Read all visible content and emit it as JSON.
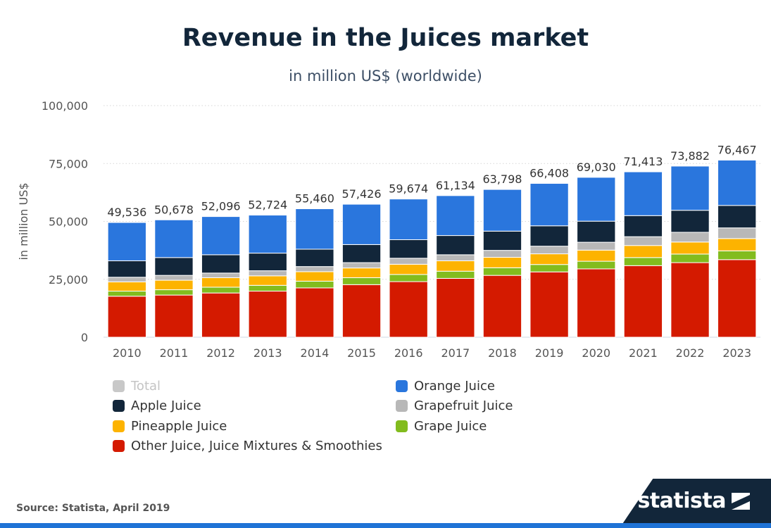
{
  "chart_data": {
    "type": "bar",
    "stacked": true,
    "title": "Revenue in the Juices market",
    "subtitle": "in million US$ (worldwide)",
    "xlabel": "",
    "ylabel": "in million US$",
    "ylim": [
      0,
      100000
    ],
    "yticks": [
      0,
      25000,
      50000,
      75000,
      100000
    ],
    "ytick_labels": [
      "0",
      "25,000",
      "50,000",
      "75,000",
      "100,000"
    ],
    "grid": true,
    "legend_position": "bottom",
    "categories": [
      "2010",
      "2011",
      "2012",
      "2013",
      "2014",
      "2015",
      "2016",
      "2017",
      "2018",
      "2019",
      "2020",
      "2021",
      "2022",
      "2023"
    ],
    "totals": [
      49536,
      50678,
      52096,
      52724,
      55460,
      57426,
      59674,
      61134,
      63798,
      66408,
      69030,
      71413,
      73882,
      76467
    ],
    "total_labels": [
      "49,536",
      "50,678",
      "52,096",
      "52,724",
      "55,460",
      "57,426",
      "59,674",
      "61,134",
      "63,798",
      "66,408",
      "69,030",
      "71,413",
      "73,882",
      "76,467"
    ],
    "series": [
      {
        "name": "Other Juice, Juice Mixtures & Smoothies",
        "color": "#d41a00",
        "values": [
          17700,
          18200,
          19100,
          19900,
          21300,
          22700,
          24000,
          25400,
          26700,
          28200,
          29500,
          30900,
          32200,
          33500
        ]
      },
      {
        "name": "Grape Juice",
        "color": "#82bc1e",
        "values": [
          2200,
          2300,
          2500,
          2500,
          2900,
          3000,
          3100,
          3100,
          3300,
          3200,
          3300,
          3500,
          3700,
          3800
        ]
      },
      {
        "name": "Pineapple Juice",
        "color": "#fdb300",
        "values": [
          4000,
          4100,
          4100,
          4100,
          4100,
          4200,
          4400,
          4500,
          4500,
          4600,
          4800,
          5200,
          5200,
          5300
        ]
      },
      {
        "name": "Grapefruit Juice",
        "color": "#b8b8b8",
        "values": [
          2000,
          2100,
          2000,
          2200,
          2200,
          2300,
          2600,
          2600,
          3000,
          3300,
          3400,
          3800,
          4200,
          4600
        ]
      },
      {
        "name": "Apple Juice",
        "color": "#12263a",
        "values": [
          7100,
          7700,
          7900,
          7600,
          7500,
          7800,
          8000,
          8300,
          8300,
          8800,
          9100,
          9100,
          9500,
          9700
        ]
      },
      {
        "name": "Orange Juice",
        "color": "#2a76dd",
        "values": [
          16536,
          16278,
          16496,
          16424,
          17460,
          17426,
          17574,
          17234,
          17998,
          18308,
          18930,
          18913,
          19082,
          19567
        ]
      }
    ]
  },
  "legend": {
    "total_label": "Total",
    "total_color": "#c8c8c8",
    "orange_label": "Orange Juice",
    "apple_label": "Apple Juice",
    "grapefruit_label": "Grapefruit Juice",
    "pineapple_label": "Pineapple Juice",
    "grape_label": "Grape Juice",
    "other_label": "Other Juice, Juice Mixtures & Smoothies"
  },
  "footer": {
    "source": "Source: Statista, April 2019",
    "brand": "statista"
  }
}
